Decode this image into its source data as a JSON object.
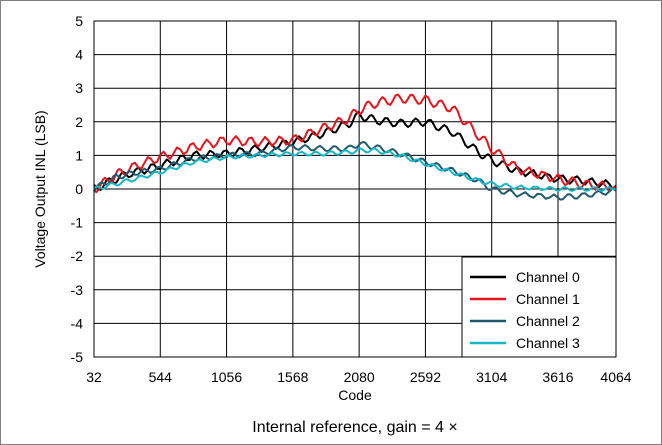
{
  "chart_data": {
    "type": "line",
    "title": "",
    "caption": "Internal reference, gain = 4 ×",
    "xlabel": "Code",
    "ylabel": "Voltage Output INL (LSB)",
    "xlim": [
      32,
      4064
    ],
    "ylim": [
      -5,
      5
    ],
    "xticks": [
      32,
      544,
      1056,
      1568,
      2080,
      2592,
      3104,
      3616,
      4064
    ],
    "yticks": [
      -5,
      -4,
      -3,
      -2,
      -1,
      0,
      1,
      2,
      3,
      4,
      5
    ],
    "grid": true,
    "legend": "bottom-right",
    "colors": {
      "Channel 0": "#000000",
      "Channel 1": "#e8141b",
      "Channel 2": "#215a6e",
      "Channel 3": "#17b8c6"
    },
    "series": [
      {
        "name": "Channel 0",
        "x": [
          32,
          200,
          300,
          544,
          800,
          1056,
          1300,
          1568,
          1800,
          2000,
          2080,
          2200,
          2400,
          2592,
          2800,
          3000,
          3104,
          3300,
          3616,
          3800,
          4064
        ],
        "y": [
          0.0,
          0.3,
          0.45,
          0.7,
          1.0,
          1.05,
          1.2,
          1.4,
          1.65,
          1.95,
          2.2,
          2.05,
          1.95,
          2.0,
          1.7,
          1.1,
          0.85,
          0.55,
          0.3,
          0.25,
          0.1
        ]
      },
      {
        "name": "Channel 1",
        "x": [
          32,
          200,
          300,
          544,
          800,
          1056,
          1300,
          1568,
          1800,
          2000,
          2080,
          2200,
          2400,
          2592,
          2800,
          3000,
          3104,
          3300,
          3616,
          3800,
          4064
        ],
        "y": [
          0.0,
          0.4,
          0.6,
          0.95,
          1.25,
          1.45,
          1.4,
          1.45,
          1.8,
          2.1,
          2.35,
          2.55,
          2.7,
          2.65,
          2.4,
          1.6,
          1.2,
          0.6,
          0.3,
          0.15,
          0.05
        ]
      },
      {
        "name": "Channel 2",
        "x": [
          32,
          200,
          300,
          544,
          800,
          1056,
          1300,
          1568,
          1800,
          2000,
          2080,
          2200,
          2400,
          2592,
          2800,
          3000,
          3104,
          3300,
          3616,
          3800,
          4064
        ],
        "y": [
          0.0,
          0.35,
          0.45,
          0.6,
          0.9,
          1.0,
          1.05,
          1.25,
          1.2,
          1.2,
          1.35,
          1.25,
          1.05,
          0.8,
          0.55,
          0.25,
          0.0,
          -0.15,
          -0.25,
          -0.2,
          -0.05
        ]
      },
      {
        "name": "Channel 3",
        "x": [
          32,
          200,
          300,
          544,
          800,
          1056,
          1300,
          1568,
          1800,
          2000,
          2080,
          2200,
          2400,
          2592,
          2800,
          3000,
          3104,
          3300,
          3616,
          3800,
          4064
        ],
        "y": [
          0.0,
          0.15,
          0.25,
          0.5,
          0.8,
          0.95,
          1.0,
          1.05,
          1.05,
          1.1,
          1.15,
          1.15,
          1.0,
          0.75,
          0.5,
          0.25,
          0.15,
          0.05,
          0.0,
          0.0,
          0.0
        ]
      }
    ]
  }
}
